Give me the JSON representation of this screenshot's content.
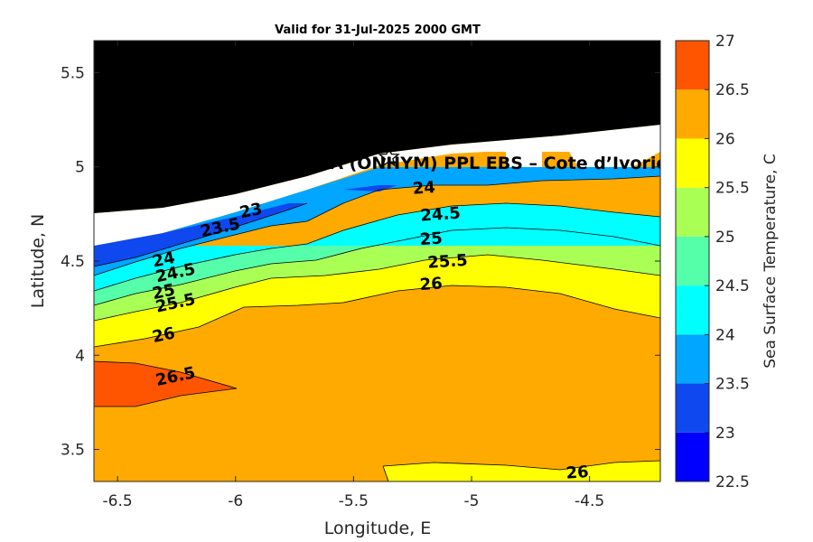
{
  "chart_data": {
    "type": "contour",
    "title": "Valid for 31-Jul-2025 2000 GMT",
    "xlabel": "Longitude, E",
    "ylabel": "Latitude, N",
    "xlim": [
      -6.6,
      -4.2
    ],
    "ylim": [
      3.33,
      5.67
    ],
    "x_ticks": [
      {
        "value": -6.5,
        "label": "-6.5"
      },
      {
        "value": -6,
        "label": "-6"
      },
      {
        "value": -5.5,
        "label": "-5.5"
      },
      {
        "value": -5,
        "label": "-5"
      },
      {
        "value": -4.5,
        "label": "-4.5"
      }
    ],
    "y_ticks": [
      {
        "value": 3.5,
        "label": "3.5"
      },
      {
        "value": 4,
        "label": "4"
      },
      {
        "value": 4.5,
        "label": "4.5"
      },
      {
        "value": 5,
        "label": "5"
      },
      {
        "value": 5.5,
        "label": "5.5"
      }
    ],
    "colorbar": {
      "label": "Sea Surface Temperature, C",
      "range": [
        22.5,
        27
      ],
      "levels": [
        {
          "low": 22.5,
          "high": 23,
          "color": "#0000ff"
        },
        {
          "low": 23,
          "high": 23.5,
          "color": "#0f48ee"
        },
        {
          "low": 23.5,
          "high": 24,
          "color": "#00a6ff"
        },
        {
          "low": 24,
          "high": 24.5,
          "color": "#00ffff"
        },
        {
          "low": 24.5,
          "high": 25,
          "color": "#55ffaa"
        },
        {
          "low": 25,
          "high": 25.5,
          "color": "#aaff55"
        },
        {
          "low": 25.5,
          "high": 26,
          "color": "#ffff00"
        },
        {
          "low": 26,
          "high": 26.5,
          "color": "#ffaa00"
        },
        {
          "low": 26.5,
          "high": 27,
          "color": "#ff5500"
        }
      ],
      "ticks": [
        {
          "value": 22.5,
          "label": "22.5"
        },
        {
          "value": 23,
          "label": "23"
        },
        {
          "value": 23.5,
          "label": "23.5"
        },
        {
          "value": 24,
          "label": "24"
        },
        {
          "value": 24.5,
          "label": "24.5"
        },
        {
          "value": 25,
          "label": "25"
        },
        {
          "value": 25.5,
          "label": "25.5"
        },
        {
          "value": 26,
          "label": "26"
        },
        {
          "value": 26.5,
          "label": "26.5"
        },
        {
          "value": 27,
          "label": "27"
        }
      ]
    },
    "colors": {
      "land": "#000000",
      "nodata": "#ffffff"
    },
    "contour_labels": [
      {
        "text": "23",
        "lon": -5.93,
        "lat": 4.74
      },
      {
        "text": "23.5",
        "lon": -6.06,
        "lat": 4.65
      },
      {
        "text": "24",
        "lon": -5.2,
        "lat": 4.86
      },
      {
        "text": "24.5",
        "lon": -5.13,
        "lat": 4.72
      },
      {
        "text": "25",
        "lon": -5.17,
        "lat": 4.59
      },
      {
        "text": "25.5",
        "lon": -5.1,
        "lat": 4.47
      },
      {
        "text": "26",
        "lon": -5.17,
        "lat": 4.35
      },
      {
        "text": "24",
        "lon": -6.3,
        "lat": 4.48
      },
      {
        "text": "24.5",
        "lon": -6.25,
        "lat": 4.41
      },
      {
        "text": "25",
        "lon": -6.3,
        "lat": 4.31
      },
      {
        "text": "25.5",
        "lon": -6.25,
        "lat": 4.25
      },
      {
        "text": "26",
        "lon": -6.3,
        "lat": 4.08
      },
      {
        "text": "26.5",
        "lon": -6.25,
        "lat": 3.86
      },
      {
        "text": "26",
        "lon": -4.55,
        "lat": 3.35
      }
    ],
    "site_marker": {
      "lon": -5.35,
      "lat": 5.05,
      "symbol": "star"
    },
    "annotation": {
      "text": "A (ONHYM) PPL EBS  – Cote d’Ivorie",
      "lon": -5.6,
      "lat": 4.99
    }
  }
}
